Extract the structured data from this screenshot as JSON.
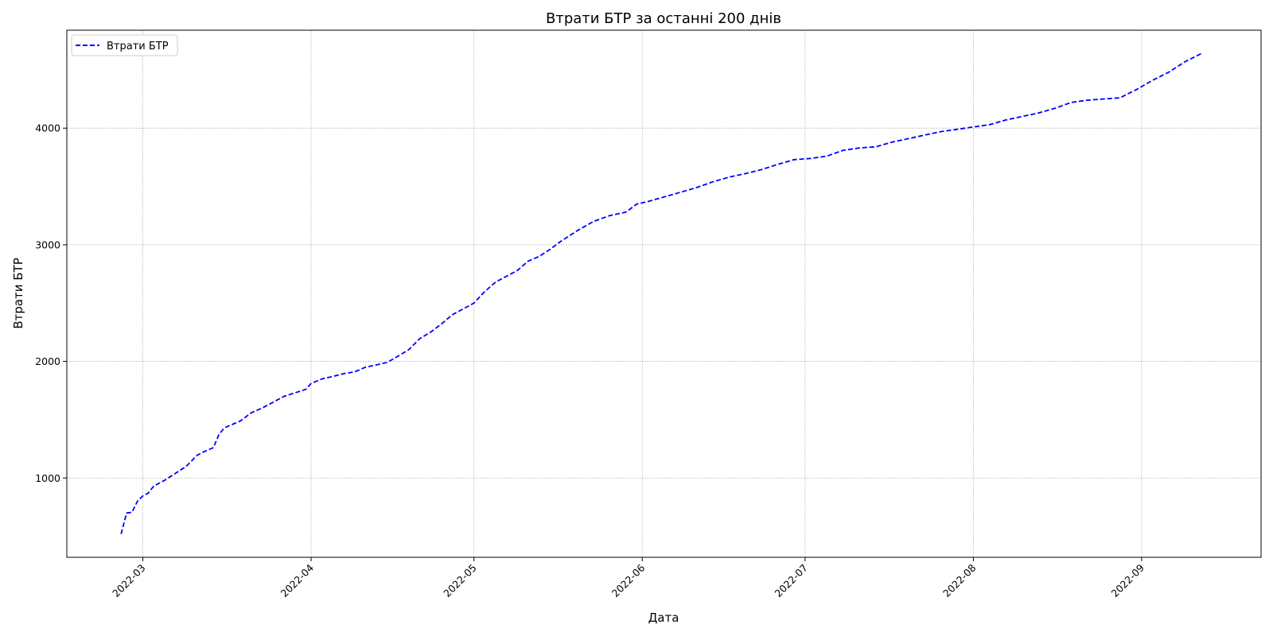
{
  "chart_data": {
    "type": "line",
    "title": "Втрати БТР за останні 200 днів",
    "xlabel": "Дата",
    "ylabel": "Втрати БТР",
    "grid": true,
    "legend_placement": "top-left",
    "x_ticks": [
      "2022-03",
      "2022-04",
      "2022-05",
      "2022-06",
      "2022-07",
      "2022-08",
      "2022-09"
    ],
    "y_ticks": [
      1000,
      2000,
      3000,
      4000
    ],
    "xlim": [
      "2022-02-15",
      "2022-09-23"
    ],
    "ylim": [
      320,
      4840
    ],
    "series": [
      {
        "name": "Втрати БТР",
        "color": "#0000ff",
        "line_style": "dashed",
        "x": [
          "2022-02-25",
          "2022-02-26",
          "2022-02-27",
          "2022-02-28",
          "2022-03-01",
          "2022-03-02",
          "2022-03-03",
          "2022-03-05",
          "2022-03-07",
          "2022-03-09",
          "2022-03-11",
          "2022-03-12",
          "2022-03-14",
          "2022-03-15",
          "2022-03-16",
          "2022-03-17",
          "2022-03-19",
          "2022-03-21",
          "2022-03-23",
          "2022-03-25",
          "2022-03-27",
          "2022-03-29",
          "2022-03-31",
          "2022-04-01",
          "2022-04-03",
          "2022-04-05",
          "2022-04-07",
          "2022-04-09",
          "2022-04-11",
          "2022-04-13",
          "2022-04-15",
          "2022-04-17",
          "2022-04-19",
          "2022-04-21",
          "2022-04-23",
          "2022-04-25",
          "2022-04-27",
          "2022-04-29",
          "2022-05-01",
          "2022-05-03",
          "2022-05-05",
          "2022-05-07",
          "2022-05-09",
          "2022-05-11",
          "2022-05-13",
          "2022-05-15",
          "2022-05-17",
          "2022-05-20",
          "2022-05-23",
          "2022-05-26",
          "2022-05-29",
          "2022-05-31",
          "2022-06-02",
          "2022-06-05",
          "2022-06-08",
          "2022-06-11",
          "2022-06-14",
          "2022-06-17",
          "2022-06-20",
          "2022-06-23",
          "2022-06-26",
          "2022-06-29",
          "2022-07-02",
          "2022-07-05",
          "2022-07-08",
          "2022-07-11",
          "2022-07-14",
          "2022-07-17",
          "2022-07-20",
          "2022-07-23",
          "2022-07-26",
          "2022-07-29",
          "2022-08-01",
          "2022-08-04",
          "2022-08-07",
          "2022-08-10",
          "2022-08-13",
          "2022-08-16",
          "2022-08-19",
          "2022-08-22",
          "2022-08-25",
          "2022-08-28",
          "2022-08-31",
          "2022-09-03",
          "2022-09-06",
          "2022-09-09",
          "2022-09-12"
        ],
        "values": [
          520,
          700,
          706,
          800,
          846,
          870,
          930,
          980,
          1040,
          1100,
          1195,
          1220,
          1260,
          1370,
          1430,
          1450,
          1490,
          1560,
          1600,
          1650,
          1700,
          1730,
          1760,
          1810,
          1850,
          1870,
          1895,
          1910,
          1950,
          1970,
          1990,
          2045,
          2100,
          2195,
          2250,
          2320,
          2400,
          2450,
          2500,
          2600,
          2680,
          2730,
          2780,
          2860,
          2900,
          2960,
          3030,
          3120,
          3200,
          3250,
          3280,
          3350,
          3370,
          3410,
          3450,
          3490,
          3540,
          3580,
          3610,
          3645,
          3690,
          3730,
          3740,
          3760,
          3810,
          3830,
          3840,
          3880,
          3910,
          3940,
          3970,
          3990,
          4010,
          4030,
          4070,
          4100,
          4130,
          4170,
          4220,
          4240,
          4250,
          4260,
          4330,
          4410,
          4480,
          4570,
          4640
        ]
      }
    ]
  }
}
